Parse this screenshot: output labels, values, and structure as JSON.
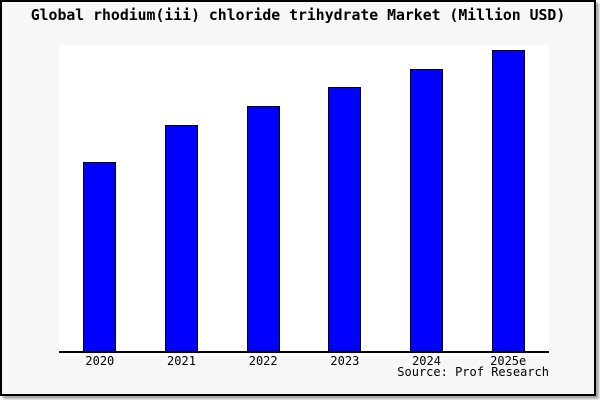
{
  "chart_data": {
    "type": "bar",
    "title": "Global rhodium(iii) chloride trihydrate Market (Million USD)",
    "categories": [
      "2020",
      "2021",
      "2022",
      "2023",
      "2024",
      "2025e"
    ],
    "values": [
      62.9,
      75.1,
      81.6,
      87.7,
      93.7,
      100
    ],
    "value_scale": "relative height, tallest bar (2025e) = 100; chart shows no y-axis",
    "xlabel": "",
    "ylabel": "",
    "ylim": [
      0,
      102
    ],
    "grid": false,
    "legend": null,
    "source_note": "Source: Prof Research"
  },
  "colors": {
    "bar_fill": "#0000ff",
    "bar_border": "#000000",
    "plot_background": "#ffffff",
    "canvas_background": "#f7f7f7",
    "frame_border": "#000000",
    "text": "#000000"
  }
}
